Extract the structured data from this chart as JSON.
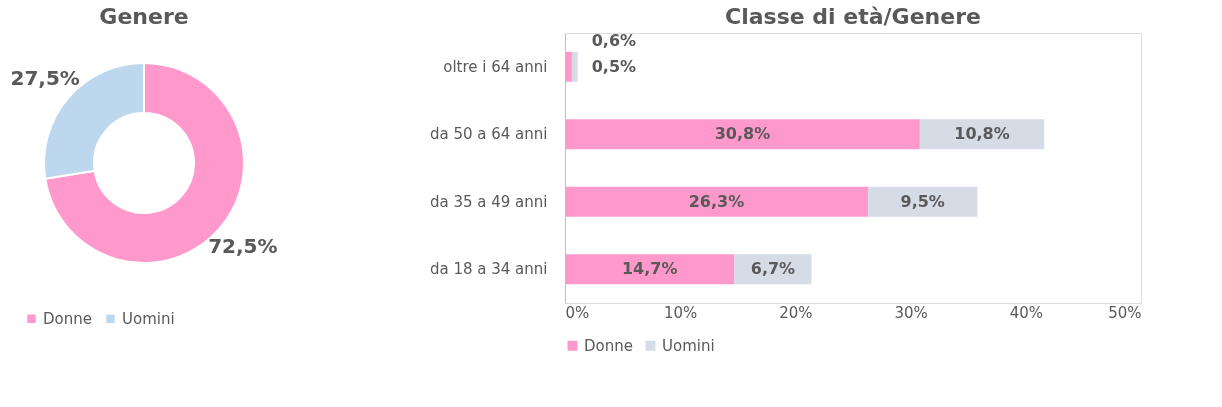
{
  "chart_data": [
    {
      "type": "donut",
      "title": "Genere",
      "categories": [
        "Donne",
        "Uomini"
      ],
      "values": [
        72.5,
        27.5
      ],
      "colors": [
        "#ff99cc",
        "#bdd7ee"
      ],
      "value_labels": [
        "72,5%",
        "27,5%"
      ],
      "legend": "bottom"
    },
    {
      "type": "bar",
      "title": "Classe di età/Genere",
      "orientation": "horizontal",
      "stacked": true,
      "categories": [
        "oltre i 64 anni",
        "da 50 a 64 anni",
        "da 35 a 49 anni",
        "da 18 a 34 anni"
      ],
      "series": [
        {
          "name": "Donne",
          "color": "#ff99cc",
          "values": [
            0.6,
            30.8,
            26.3,
            14.7
          ],
          "value_labels": [
            "0,6%",
            "30,8%",
            "26,3%",
            "14,7%"
          ]
        },
        {
          "name": "Uomini",
          "color": "#d6dce5",
          "values": [
            0.5,
            10.8,
            9.5,
            6.7
          ],
          "value_labels": [
            "0,5%",
            "10,8%",
            "9,5%",
            "6,7%"
          ]
        }
      ],
      "xlim": [
        0,
        50
      ],
      "xticks": [
        {
          "value": 0,
          "label": "0%"
        },
        {
          "value": 10,
          "label": "10%"
        },
        {
          "value": 20,
          "label": "20%"
        },
        {
          "value": 30,
          "label": "30%"
        },
        {
          "value": 40,
          "label": "40%"
        },
        {
          "value": 50,
          "label": "50%"
        }
      ],
      "grid": false,
      "legend": "bottom"
    }
  ]
}
